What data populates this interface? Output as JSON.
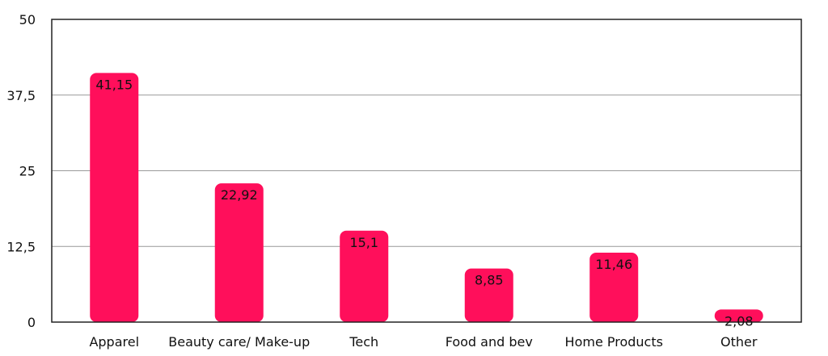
{
  "chart_data": {
    "type": "bar",
    "title": "",
    "xlabel": "",
    "ylabel": "",
    "categories": [
      "Apparel",
      "Beauty care/ Make-up",
      "Tech",
      "Food and bev",
      "Home Products",
      "Other"
    ],
    "values": [
      41.15,
      22.92,
      15.1,
      8.85,
      11.46,
      2.08
    ],
    "data_labels": [
      "41,15",
      "22,92",
      "15,1",
      "8,85",
      "11,46",
      "2,08"
    ],
    "ylim": [
      0,
      50
    ],
    "yticks": [
      0,
      12.5,
      25,
      37.5,
      50
    ],
    "ytick_labels": [
      "0",
      "12,5",
      "25",
      "37,5",
      "50"
    ],
    "grid": true,
    "legend": "none",
    "colors": {
      "bar": "#FF0F5B",
      "grid": "#999999",
      "frame": "#222222",
      "text": "#111111"
    }
  }
}
